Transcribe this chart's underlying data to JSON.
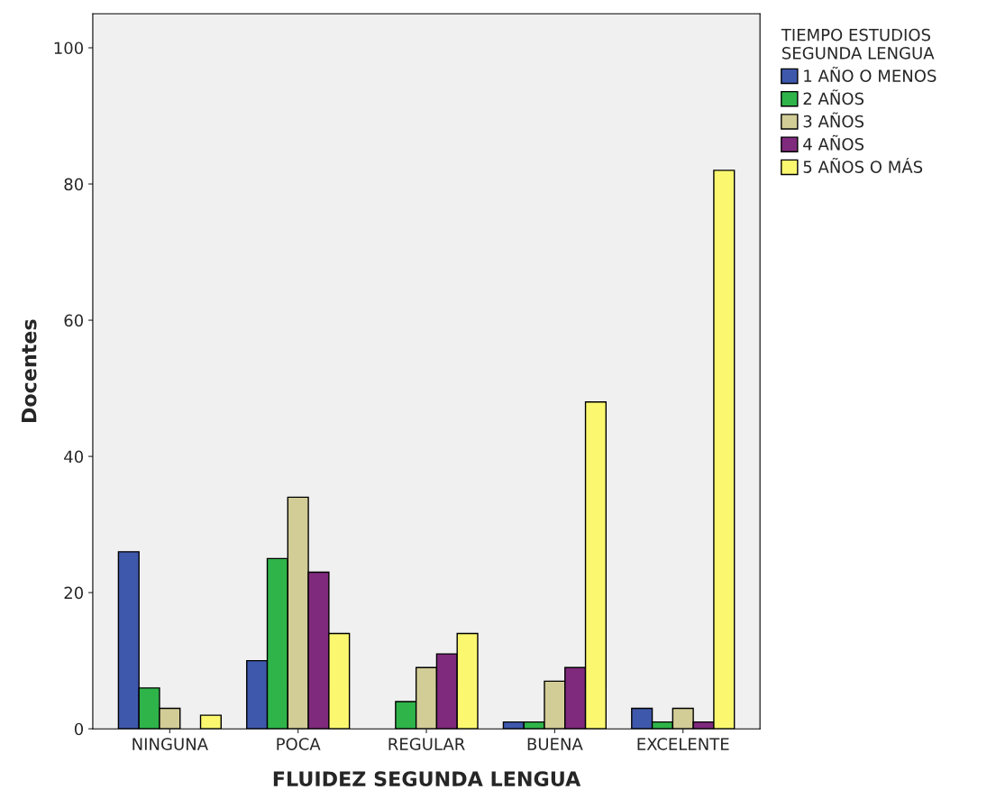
{
  "chart_data": {
    "type": "bar",
    "xlabel": "FLUIDEZ SEGUNDA LENGUA",
    "ylabel": "Docentes",
    "legend_title": "TIEMPO ESTUDIOS\nSEGUNDA LENGUA",
    "categories": [
      "NINGUNA",
      "POCA",
      "REGULAR",
      "BUENA",
      "EXCELENTE"
    ],
    "series": [
      {
        "name": "1 AÑO O MENOS",
        "color": "#3e58ac",
        "values": [
          26,
          10,
          null,
          1,
          3
        ]
      },
      {
        "name": "2 AÑOS",
        "color": "#2fb44a",
        "values": [
          6,
          25,
          4,
          1,
          1
        ]
      },
      {
        "name": "3 AÑOS",
        "color": "#d2cc96",
        "values": [
          3,
          34,
          9,
          7,
          3
        ]
      },
      {
        "name": "4 AÑOS",
        "color": "#7f2a7c",
        "values": [
          null,
          23,
          11,
          9,
          1
        ]
      },
      {
        "name": "5 AÑOS O MÁS",
        "color": "#fbf870",
        "values": [
          2,
          14,
          14,
          48,
          82
        ]
      }
    ],
    "ylim": [
      0,
      105
    ],
    "yticks": [
      0,
      20,
      40,
      60,
      80,
      100
    ],
    "grid": false,
    "legend": "right"
  }
}
